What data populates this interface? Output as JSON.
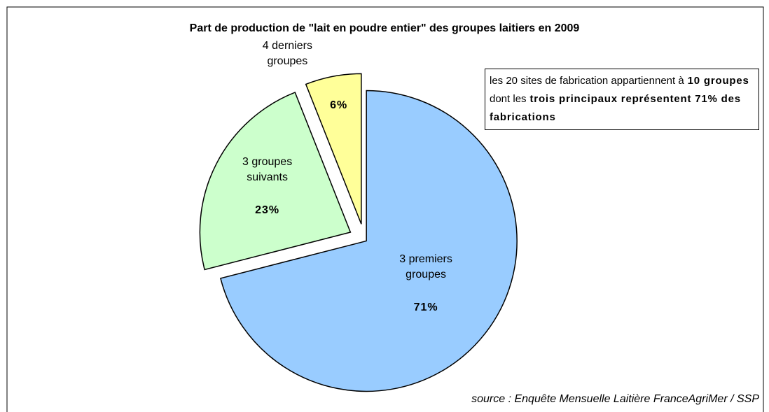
{
  "chart_data": {
    "type": "pie",
    "title": "Part de production de \"lait en poudre entier\" des groupes laitiers en 2009",
    "categories": [
      "3 premiers groupes",
      "3 groupes suivants",
      "4 derniers groupes"
    ],
    "values": [
      71,
      23,
      6
    ],
    "value_labels": [
      "71%",
      "23%",
      "6%"
    ],
    "colors": [
      "#99ccff",
      "#ccffcc",
      "#ffff99"
    ],
    "annotation": [
      {
        "text": "les 20 sites de fabrication appartiennent à",
        "bold": false
      },
      {
        "text": "10 groupes",
        "bold": true
      },
      {
        "text": "dont les",
        "bold": false
      },
      {
        "text": "trois principaux représentent 71% des fabrications",
        "bold": true
      }
    ],
    "source": "source : Enquête Mensuelle Laitière FranceAgriMer / SSP"
  }
}
